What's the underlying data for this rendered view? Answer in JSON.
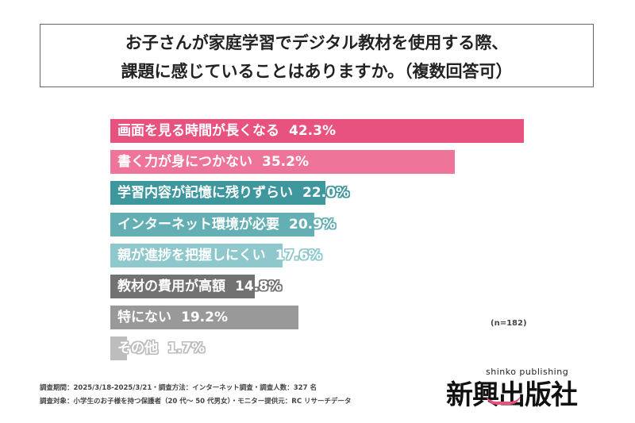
{
  "title": {
    "line1": "お子さんが家庭学習でデジタル教材を使用する際、",
    "line2": "課題に感じていることはありますか。（複数回答可）"
  },
  "chart_data": {
    "type": "bar",
    "orientation": "horizontal",
    "categories": [
      "画面を見る時間が長くなる",
      "書く力が身につかない",
      "学習内容が記憶に残りずらい",
      "インターネット環境が必要",
      "親が進捗を把握しにくい",
      "教材の費用が高額",
      "特にない",
      "その他"
    ],
    "values": [
      42.3,
      35.2,
      22.0,
      20.9,
      17.6,
      14.8,
      19.2,
      1.7
    ],
    "value_labels": [
      "42.3%",
      "35.2%",
      "22.0%",
      "20.9%",
      "17.6%",
      "14.8%",
      "19.2%",
      "1.7%"
    ],
    "colors": [
      "#e8527f",
      "#ee7499",
      "#3f979e",
      "#64afb4",
      "#8ec8cc",
      "#727272",
      "#999999",
      "#bdbdbd"
    ],
    "note": "(n=182)",
    "grid": false
  },
  "footer": {
    "line1": "調査期間：2025/3/18-2025/3/21・調査方法：インターネット調査・調査人数：327 名",
    "line2": "調査対象：小学生のお子様を持つ保護者（20 代～ 50 代男女）・モニター提供元：RC リサーチデータ"
  },
  "logo": {
    "en": "shinko publishing",
    "jp": "新興出版社"
  }
}
